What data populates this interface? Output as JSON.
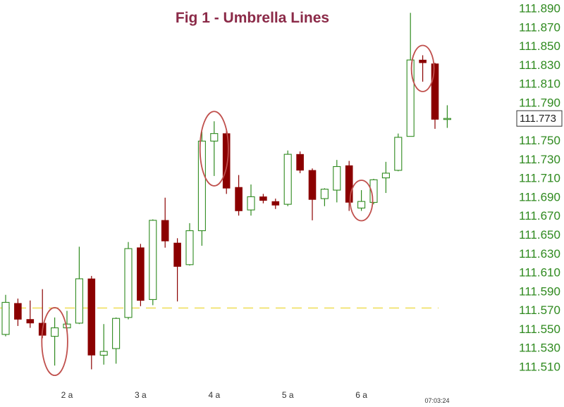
{
  "chart_data": {
    "type": "candlestick",
    "title": "Fig 1 - Umbrella Lines",
    "ylim": [
      111.5,
      111.895
    ],
    "y_ticks": [
      "111.890",
      "111.870",
      "111.850",
      "111.830",
      "111.810",
      "111.790",
      "111.770",
      "111.750",
      "111.730",
      "111.710",
      "111.690",
      "111.670",
      "111.650",
      "111.630",
      "111.610",
      "111.590",
      "111.570",
      "111.550",
      "111.530",
      "111.510"
    ],
    "x_ticks": [
      {
        "label": "2 a",
        "index": 5
      },
      {
        "label": "3 a",
        "index": 11
      },
      {
        "label": "4 a",
        "index": 17
      },
      {
        "label": "5 a",
        "index": 23
      },
      {
        "label": "6 a",
        "index": 29
      }
    ],
    "timestamp": "07:03:24",
    "last_price": "111.773",
    "reference_line": 111.572,
    "candles": [
      {
        "open": 111.544,
        "high": 111.586,
        "low": 111.542,
        "close": 111.578
      },
      {
        "open": 111.577,
        "high": 111.582,
        "low": 111.553,
        "close": 111.56
      },
      {
        "open": 111.56,
        "high": 111.58,
        "low": 111.551,
        "close": 111.556
      },
      {
        "open": 111.556,
        "high": 111.592,
        "low": 111.54,
        "close": 111.543
      },
      {
        "open": 111.542,
        "high": 111.562,
        "low": 111.511,
        "close": 111.551
      },
      {
        "open": 111.551,
        "high": 111.569,
        "low": 111.547,
        "close": 111.555
      },
      {
        "open": 111.556,
        "high": 111.637,
        "low": 111.555,
        "close": 111.603
      },
      {
        "open": 111.603,
        "high": 111.606,
        "low": 111.507,
        "close": 111.522
      },
      {
        "open": 111.522,
        "high": 111.555,
        "low": 111.512,
        "close": 111.526
      },
      {
        "open": 111.529,
        "high": 111.562,
        "low": 111.513,
        "close": 111.561
      },
      {
        "open": 111.562,
        "high": 111.642,
        "low": 111.56,
        "close": 111.635
      },
      {
        "open": 111.636,
        "high": 111.64,
        "low": 111.574,
        "close": 111.58
      },
      {
        "open": 111.581,
        "high": 111.666,
        "low": 111.575,
        "close": 111.665
      },
      {
        "open": 111.665,
        "high": 111.689,
        "low": 111.636,
        "close": 111.643
      },
      {
        "open": 111.641,
        "high": 111.646,
        "low": 111.579,
        "close": 111.616
      },
      {
        "open": 111.618,
        "high": 111.662,
        "low": 111.617,
        "close": 111.654
      },
      {
        "open": 111.654,
        "high": 111.759,
        "low": 111.638,
        "close": 111.749
      },
      {
        "open": 111.749,
        "high": 111.77,
        "low": 111.712,
        "close": 111.757
      },
      {
        "open": 111.757,
        "high": 111.762,
        "low": 111.693,
        "close": 111.699
      },
      {
        "open": 111.7,
        "high": 111.713,
        "low": 111.67,
        "close": 111.675
      },
      {
        "open": 111.676,
        "high": 111.703,
        "low": 111.67,
        "close": 111.69
      },
      {
        "open": 111.69,
        "high": 111.693,
        "low": 111.683,
        "close": 111.686
      },
      {
        "open": 111.685,
        "high": 111.688,
        "low": 111.677,
        "close": 111.681
      },
      {
        "open": 111.682,
        "high": 111.739,
        "low": 111.68,
        "close": 111.735
      },
      {
        "open": 111.735,
        "high": 111.738,
        "low": 111.715,
        "close": 111.718
      },
      {
        "open": 111.718,
        "high": 111.72,
        "low": 111.665,
        "close": 111.687
      },
      {
        "open": 111.688,
        "high": 111.699,
        "low": 111.68,
        "close": 111.698
      },
      {
        "open": 111.697,
        "high": 111.729,
        "low": 111.684,
        "close": 111.722
      },
      {
        "open": 111.723,
        "high": 111.728,
        "low": 111.675,
        "close": 111.684
      },
      {
        "open": 111.678,
        "high": 111.697,
        "low": 111.675,
        "close": 111.685
      },
      {
        "open": 111.684,
        "high": 111.709,
        "low": 111.682,
        "close": 111.708
      },
      {
        "open": 111.71,
        "high": 111.727,
        "low": 111.694,
        "close": 111.715
      },
      {
        "open": 111.718,
        "high": 111.757,
        "low": 111.717,
        "close": 111.753
      },
      {
        "open": 111.754,
        "high": 111.885,
        "low": 111.754,
        "close": 111.835
      },
      {
        "open": 111.835,
        "high": 111.84,
        "low": 111.812,
        "close": 111.832
      },
      {
        "open": 111.831,
        "high": 111.832,
        "low": 111.762,
        "close": 111.772
      },
      {
        "open": 111.773,
        "high": 111.787,
        "low": 111.763,
        "close": 111.773
      }
    ],
    "highlighted_candles": [
      4,
      17,
      29,
      34
    ],
    "colors": {
      "title": "#8B2A48",
      "axis_text": "#2F8A1F",
      "bull": "#2F8A1F",
      "bear": "#8B0000",
      "circle": "#C0504D",
      "reference_line": "#F0E060"
    }
  }
}
